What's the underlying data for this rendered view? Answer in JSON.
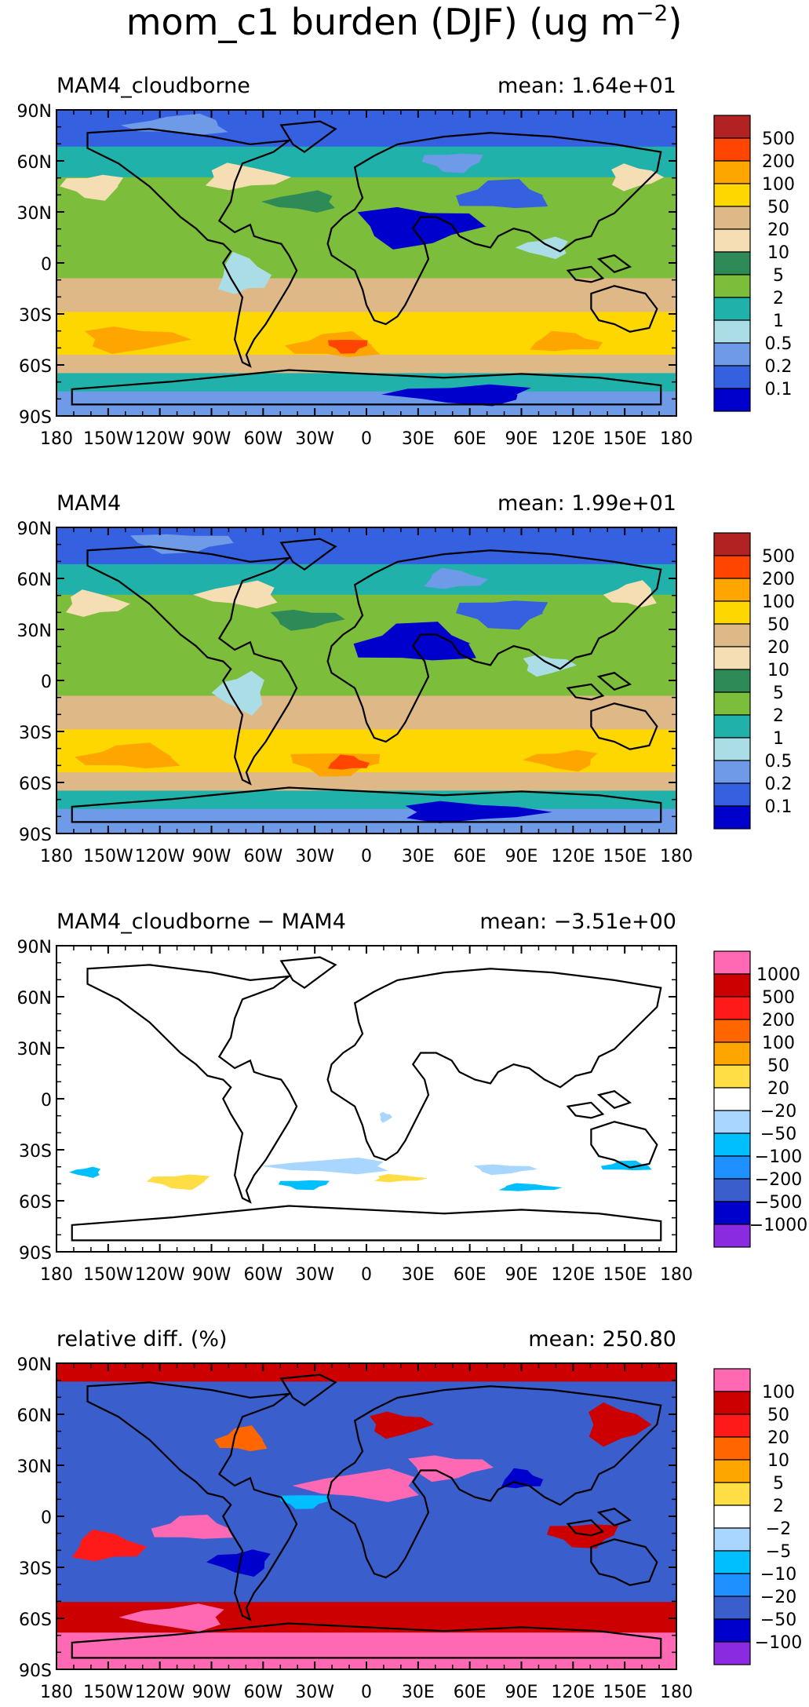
{
  "figure": {
    "title_main": "mom_c1 burden (DJF) (ug m",
    "title_sup": "−2",
    "title_end": ")"
  },
  "lat_labels": [
    "90N",
    "60N",
    "30N",
    "0",
    "30S",
    "60S",
    "90S"
  ],
  "lon_labels": [
    "180",
    "150W",
    "120W",
    "90W",
    "60W",
    "30W",
    "0",
    "30E",
    "60E",
    "90E",
    "120E",
    "150E",
    "180"
  ],
  "panels": [
    {
      "id": "cloudborne",
      "left_title": "MAM4_cloudborne",
      "right_title": "mean: 1.64e+01",
      "style": "burden",
      "legend": {
        "labels": [
          "500",
          "200",
          "100",
          "50",
          "20",
          "10",
          "5",
          "2",
          "1",
          "0.5",
          "0.2",
          "0.1"
        ],
        "colors": [
          "#b22222",
          "#ff4500",
          "#ffa500",
          "#ffd700",
          "#deb887",
          "#f5deb3",
          "#2e8b57",
          "#7cbd3b",
          "#20b2aa",
          "#aadde6",
          "#6f9ae8",
          "#3560e0",
          "#0000cd"
        ]
      }
    },
    {
      "id": "mam4",
      "left_title": "MAM4",
      "right_title": "mean: 1.99e+01",
      "style": "burden",
      "legend": {
        "labels": [
          "500",
          "200",
          "100",
          "50",
          "20",
          "10",
          "5",
          "2",
          "1",
          "0.5",
          "0.2",
          "0.1"
        ],
        "colors": [
          "#b22222",
          "#ff4500",
          "#ffa500",
          "#ffd700",
          "#deb887",
          "#f5deb3",
          "#2e8b57",
          "#7cbd3b",
          "#20b2aa",
          "#aadde6",
          "#6f9ae8",
          "#3560e0",
          "#0000cd"
        ]
      }
    },
    {
      "id": "diff",
      "left_title": "MAM4_cloudborne − MAM4",
      "right_title": "mean: −3.51e+00",
      "style": "diff",
      "legend": {
        "labels": [
          "1000",
          "500",
          "200",
          "100",
          "50",
          "20",
          "−20",
          "−50",
          "−100",
          "−200",
          "−500",
          "−1000"
        ],
        "colors": [
          "#ff69b4",
          "#cc0000",
          "#ff1a1a",
          "#ff6600",
          "#ffa500",
          "#ffdd44",
          "#ffffff",
          "#a9d6ff",
          "#00bfff",
          "#1e90ff",
          "#3a5fcd",
          "#0000cd",
          "#8a2be2"
        ]
      }
    },
    {
      "id": "reldiff",
      "left_title": "relative diff. (%)",
      "right_title": "mean: 250.80",
      "style": "rel",
      "legend": {
        "labels": [
          "100",
          "50",
          "20",
          "10",
          "5",
          "2",
          "−2",
          "−5",
          "−10",
          "−20",
          "−50",
          "−100"
        ],
        "colors": [
          "#ff69b4",
          "#cc0000",
          "#ff1a1a",
          "#ff6600",
          "#ffa500",
          "#ffdd44",
          "#ffffff",
          "#a9d6ff",
          "#00bfff",
          "#1e90ff",
          "#3a5fcd",
          "#0000cd",
          "#8a2be2"
        ]
      }
    }
  ]
}
